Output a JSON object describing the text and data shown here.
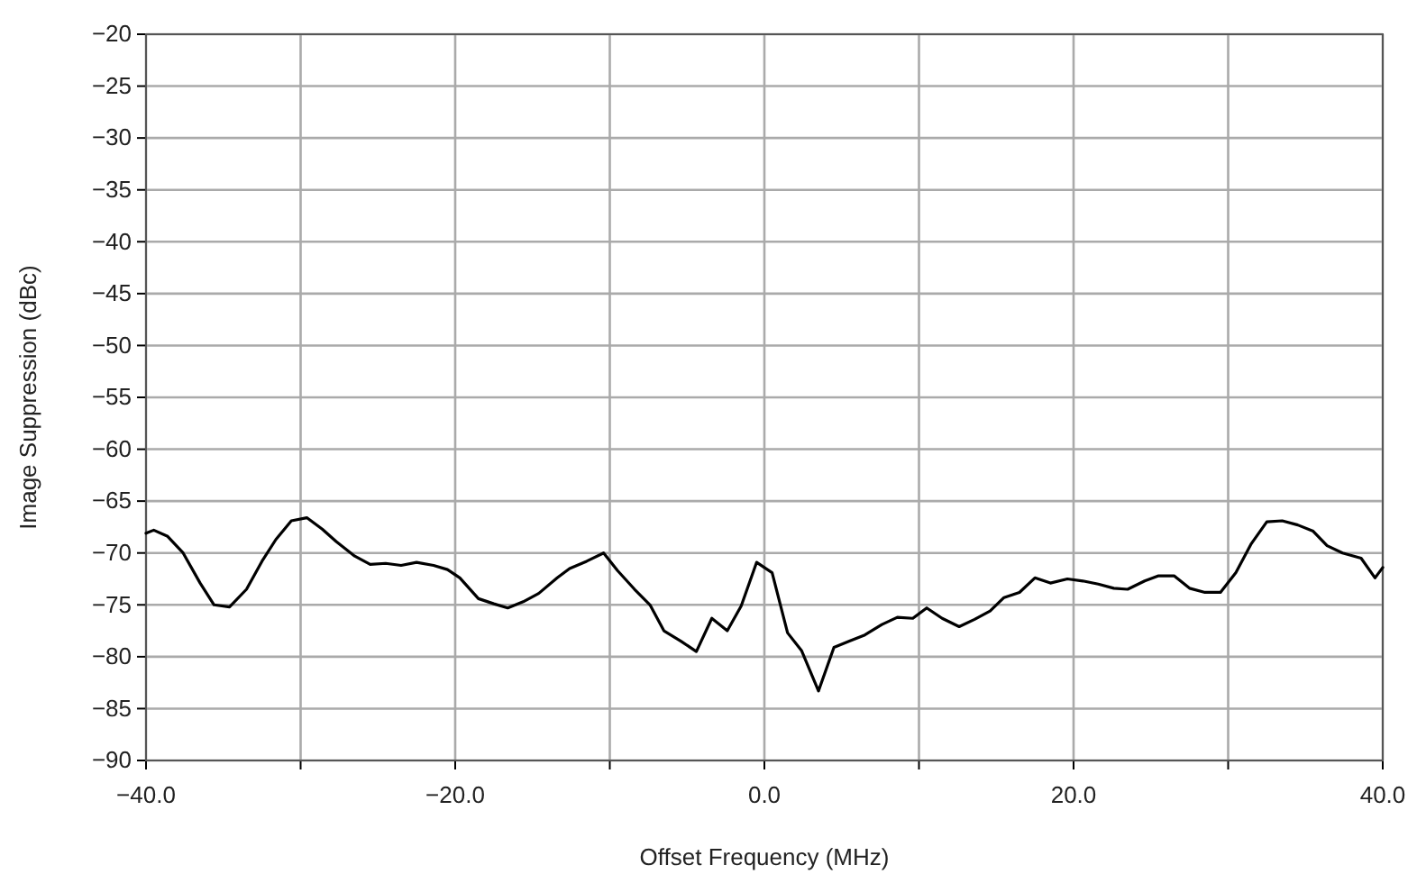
{
  "chart_data": {
    "type": "line",
    "xlabel": "Offset Frequency (MHz)",
    "ylabel": "Image Suppression (dBc)",
    "grid": true,
    "marker": "none",
    "line_style": "solid",
    "xlim": [
      -40,
      40
    ],
    "ylim": [
      -90,
      -20
    ],
    "xticks": [
      {
        "value": -40,
        "label": "−40.0"
      },
      {
        "value": -30,
        "label": null
      },
      {
        "value": -20,
        "label": "−20.0"
      },
      {
        "value": -10,
        "label": null
      },
      {
        "value": 0,
        "label": "0.0"
      },
      {
        "value": 10,
        "label": null
      },
      {
        "value": 20,
        "label": "20.0"
      },
      {
        "value": 30,
        "label": null
      },
      {
        "value": 40,
        "label": "40.0"
      }
    ],
    "yticks": [
      {
        "value": -90,
        "label": "−90"
      },
      {
        "value": -85,
        "label": "−85"
      },
      {
        "value": -80,
        "label": "−80"
      },
      {
        "value": -75,
        "label": "−75"
      },
      {
        "value": -70,
        "label": "−70"
      },
      {
        "value": -65,
        "label": "−65"
      },
      {
        "value": -60,
        "label": "−60"
      },
      {
        "value": -55,
        "label": "−55"
      },
      {
        "value": -50,
        "label": "−50"
      },
      {
        "value": -45,
        "label": "−45"
      },
      {
        "value": -40,
        "label": "−40"
      },
      {
        "value": -35,
        "label": "−35"
      },
      {
        "value": -30,
        "label": "−30"
      },
      {
        "value": -25,
        "label": "−25"
      },
      {
        "value": -20,
        "label": "−20"
      }
    ],
    "series": [
      {
        "color": "#000000",
        "x": [
          -40,
          -39.5,
          -38.6,
          -37.6,
          -36.5,
          -35.6,
          -34.6,
          -33.5,
          -32.5,
          -31.6,
          -30.6,
          -29.6,
          -28.6,
          -27.7,
          -26.5,
          -25.5,
          -24.5,
          -23.5,
          -22.5,
          -21.4,
          -20.5,
          -19.7,
          -18.5,
          -17.5,
          -16.6,
          -15.6,
          -14.6,
          -13.4,
          -12.6,
          -11.5,
          -10.4,
          -9.5,
          -8.4,
          -7.4,
          -6.5,
          -5.4,
          -4.4,
          -3.4,
          -2.4,
          -1.5,
          -0.5,
          0.5,
          1.5,
          2.4,
          3.5,
          4.5,
          5.5,
          6.5,
          7.6,
          8.6,
          9.6,
          10.5,
          11.5,
          12.6,
          13.6,
          14.6,
          15.5,
          16.5,
          17.5,
          18.5,
          19.6,
          20.6,
          21.6,
          22.6,
          23.5,
          24.6,
          25.5,
          26.5,
          27.5,
          28.5,
          29.5,
          30.5,
          31.5,
          32.5,
          33.5,
          34.5,
          35.5,
          36.4,
          37.4,
          38.6,
          39.5,
          40
        ],
        "values": [
          -68.1,
          -67.8,
          -68.4,
          -70,
          -72.9,
          -75,
          -75.2,
          -73.5,
          -70.8,
          -68.7,
          -66.9,
          -66.6,
          -67.7,
          -68.9,
          -70.3,
          -71.1,
          -71,
          -71.2,
          -70.9,
          -71.2,
          -71.6,
          -72.4,
          -74.4,
          -74.9,
          -75.3,
          -74.7,
          -73.9,
          -72.4,
          -71.5,
          -70.8,
          -70,
          -71.7,
          -73.5,
          -75,
          -77.5,
          -78.5,
          -79.5,
          -76.3,
          -77.5,
          -75.1,
          -70.9,
          -71.9,
          -77.7,
          -79.4,
          -83.3,
          -79.1,
          -78.5,
          -77.9,
          -76.9,
          -76.2,
          -76.3,
          -75.3,
          -76.3,
          -77.1,
          -76.4,
          -75.6,
          -74.3,
          -73.8,
          -72.4,
          -72.9,
          -72.5,
          -72.7,
          -73,
          -73.4,
          -73.5,
          -72.7,
          -72.2,
          -72.2,
          -73.4,
          -73.8,
          -73.8,
          -71.9,
          -69.1,
          -67,
          -66.9,
          -67.3,
          -67.9,
          -69.3,
          -70,
          -70.5,
          -72.4,
          -71.4
        ]
      }
    ]
  }
}
